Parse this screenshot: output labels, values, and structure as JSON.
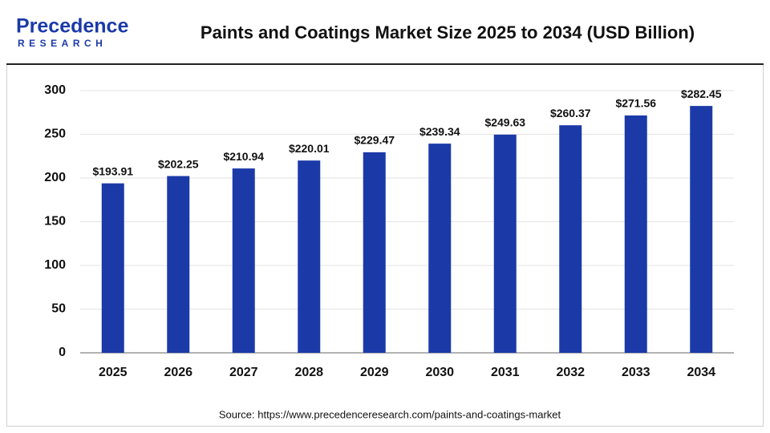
{
  "brand": {
    "name": "Precedence",
    "tagline": "RESEARCH"
  },
  "chart_data": {
    "type": "bar",
    "title": "Paints and Coatings Market Size 2025 to 2034 (USD Billion)",
    "source": "Source: https://www.precedenceresearch.com/paints-and-coatings-market",
    "categories": [
      "2025",
      "2026",
      "2027",
      "2028",
      "2029",
      "2030",
      "2031",
      "2032",
      "2033",
      "2034"
    ],
    "values": [
      193.91,
      202.25,
      210.94,
      220.01,
      229.47,
      239.34,
      249.63,
      260.37,
      271.56,
      282.45
    ],
    "value_labels": [
      "$193.91",
      "$202.25",
      "$210.94",
      "$220.01",
      "$229.47",
      "$239.34",
      "$249.63",
      "$260.37",
      "$271.56",
      "$282.45"
    ],
    "color": "#1b3aa8",
    "ylim": [
      0,
      300
    ],
    "yticks": [
      0,
      50,
      100,
      150,
      200,
      250,
      300
    ],
    "grid": true
  }
}
